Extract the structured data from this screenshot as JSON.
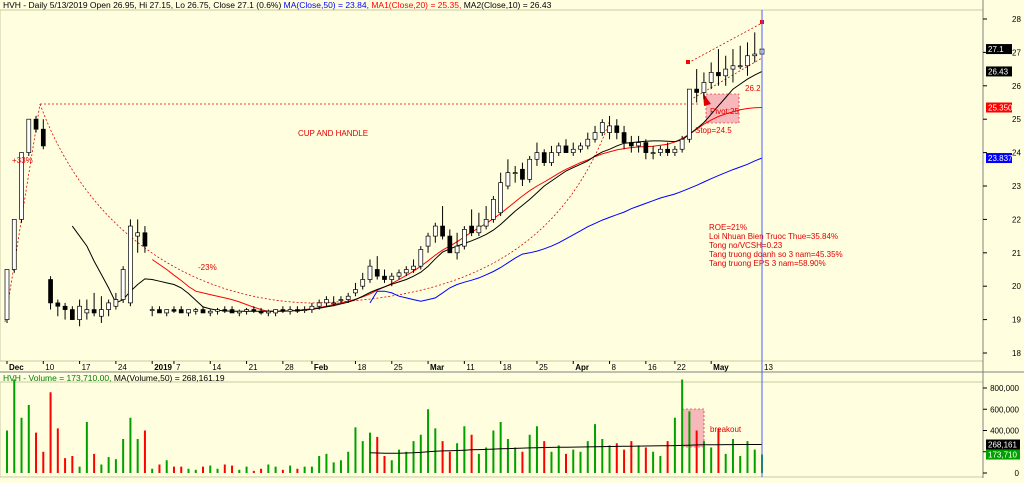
{
  "colors": {
    "bg": "#ffffe0",
    "candle_up": "#ffffff",
    "candle_down": "#000000",
    "ma50": "#0000ff",
    "ma20": "#ff0000",
    "ma10": "#000000",
    "vol_up": "#00a000",
    "vol_down": "#ff0000",
    "annotation": "#e00000",
    "cursor_line": "#4a5cff"
  },
  "header": {
    "price": {
      "lead": "HVH - Daily 5/13/2019 Open 26.95, Hi 27.15, Lo 26.75, Close 27.1 (0.6%) ",
      "ma50": "MA(Close,50) = 23.84, ",
      "ma20": "MA1(Close,20) = 25.35, ",
      "ma10": "MA2(Close,10) = 26.43"
    },
    "volume": {
      "lead": "HVH - Volume = 173,710.00, ",
      "ma": "MA(Volume,50) = 268,161.19"
    }
  },
  "annotations": {
    "cup": "CUP AND HANDLE",
    "pct_up": "+33%",
    "pct_down": "-23%",
    "pivot": "Pivot:25",
    "stop": "Stop=24.5",
    "level": "26.2",
    "breakout": "breakout",
    "fundamentals": [
      "ROE=21%",
      "Loi Nhuan Bien Truoc Thue=35.84%",
      "Tong no/VCSH=0.23",
      "Tang truong doanh so 3 nam=45.35%",
      "Tang truong EPS 3 nam=58.90%"
    ]
  },
  "price_axis": {
    "ticks": [
      "18",
      "19",
      "20",
      "21",
      "22",
      "23",
      "24",
      "25",
      "26",
      "27",
      "28"
    ],
    "tags": [
      {
        "text": "27.1",
        "value": 27.1,
        "bg": "#000000",
        "fg": "#ffffff"
      },
      {
        "text": "26.43",
        "value": 26.43,
        "bg": "#000000",
        "fg": "#ffffff"
      },
      {
        "text": "25.350",
        "value": 25.35,
        "bg": "#ff0000",
        "fg": "#ffffff"
      },
      {
        "text": "23.837",
        "value": 23.837,
        "bg": "#0000ff",
        "fg": "#ffffff"
      }
    ]
  },
  "volume_axis": {
    "ticks": [
      "0",
      "200,000",
      "400,000",
      "600,000",
      "800,000"
    ],
    "tags": [
      {
        "text": "268,161",
        "value": 268161,
        "bg": "#000000",
        "fg": "#ffffff"
      },
      {
        "text": "173,710",
        "value": 173710,
        "bg": "#00a000",
        "fg": "#ffffff"
      }
    ]
  },
  "date_axis": [
    "Dec",
    "10",
    "17",
    "24",
    "2019",
    "7",
    "14",
    "21",
    "28",
    "Feb",
    "18",
    "25",
    "Mar",
    "11",
    "18",
    "25",
    "Apr",
    "8",
    "16",
    "22",
    "May",
    "13"
  ],
  "chart_data": [
    {
      "type": "candlestick",
      "panel": "price",
      "x": [
        "2018-12-03",
        "2018-12-04",
        "2018-12-05",
        "2018-12-06",
        "2018-12-07",
        "2018-12-10",
        "2018-12-11",
        "2018-12-12",
        "2018-12-13",
        "2018-12-14",
        "2018-12-17",
        "2018-12-18",
        "2018-12-19",
        "2018-12-20",
        "2018-12-21",
        "2018-12-24",
        "2018-12-25",
        "2018-12-26",
        "2018-12-27",
        "2018-12-28",
        "2019-01-02",
        "2019-01-03",
        "2019-01-04",
        "2019-01-07",
        "2019-01-08",
        "2019-01-09",
        "2019-01-10",
        "2019-01-11",
        "2019-01-14",
        "2019-01-15",
        "2019-01-16",
        "2019-01-17",
        "2019-01-18",
        "2019-01-21",
        "2019-01-22",
        "2019-01-23",
        "2019-01-24",
        "2019-01-25",
        "2019-01-28",
        "2019-01-29",
        "2019-01-30",
        "2019-01-31",
        "2019-02-01",
        "2019-02-11",
        "2019-02-12",
        "2019-02-13",
        "2019-02-14",
        "2019-02-15",
        "2019-02-18",
        "2019-02-19",
        "2019-02-20",
        "2019-02-21",
        "2019-02-22",
        "2019-02-25",
        "2019-02-26",
        "2019-02-27",
        "2019-02-28",
        "2019-03-01",
        "2019-03-04",
        "2019-03-05",
        "2019-03-06",
        "2019-03-07",
        "2019-03-08",
        "2019-03-11",
        "2019-03-12",
        "2019-03-13",
        "2019-03-14",
        "2019-03-15",
        "2019-03-18",
        "2019-03-19",
        "2019-03-20",
        "2019-03-21",
        "2019-03-22",
        "2019-03-25",
        "2019-03-26",
        "2019-03-27",
        "2019-03-28",
        "2019-03-29",
        "2019-04-01",
        "2019-04-02",
        "2019-04-03",
        "2019-04-04",
        "2019-04-05",
        "2019-04-08",
        "2019-04-09",
        "2019-04-10",
        "2019-04-11",
        "2019-04-12",
        "2019-04-16",
        "2019-04-17",
        "2019-04-18",
        "2019-04-19",
        "2019-04-22",
        "2019-04-23",
        "2019-04-24",
        "2019-04-25",
        "2019-04-26",
        "2019-05-02",
        "2019-05-03",
        "2019-05-06",
        "2019-05-07",
        "2019-05-08",
        "2019-05-09",
        "2019-05-10",
        "2019-05-13"
      ],
      "open": [
        19.0,
        20.5,
        22.0,
        24.0,
        25.0,
        24.7,
        20.2,
        19.5,
        19.4,
        19.3,
        19.0,
        19.2,
        19.3,
        19.1,
        19.3,
        19.4,
        19.6,
        19.5,
        21.5,
        21.6,
        19.3,
        19.3,
        19.2,
        19.3,
        19.3,
        19.2,
        19.25,
        19.3,
        19.2,
        19.25,
        19.3,
        19.3,
        19.2,
        19.25,
        19.3,
        19.25,
        19.2,
        19.2,
        19.3,
        19.25,
        19.3,
        19.3,
        19.3,
        19.4,
        19.5,
        19.5,
        19.6,
        19.6,
        19.8,
        20.0,
        20.2,
        20.5,
        20.3,
        20.2,
        20.3,
        20.4,
        20.5,
        20.6,
        21.2,
        21.5,
        21.8,
        21.5,
        21.0,
        21.2,
        21.8,
        21.6,
        21.8,
        22.0,
        22.2,
        23.0,
        23.4,
        23.5,
        23.2,
        23.8,
        24.0,
        23.7,
        24.0,
        24.2,
        24.0,
        24.1,
        24.2,
        24.4,
        24.6,
        24.6,
        24.8,
        24.6,
        24.3,
        24.2,
        24.3,
        24.0,
        24.0,
        24.1,
        24.0,
        24.1,
        24.4,
        25.9,
        25.8,
        26.1,
        26.4,
        26.3,
        26.5,
        26.6,
        26.6,
        26.9,
        26.95
      ],
      "high": [
        20.5,
        22.0,
        24.0,
        25.0,
        25.1,
        25.0,
        20.3,
        19.6,
        19.5,
        19.4,
        19.6,
        19.6,
        19.8,
        19.7,
        19.6,
        19.8,
        20.6,
        22.0,
        22.0,
        21.8,
        19.4,
        19.4,
        19.3,
        19.4,
        19.4,
        19.3,
        19.35,
        19.4,
        19.3,
        19.35,
        19.4,
        19.4,
        19.3,
        19.35,
        19.4,
        19.35,
        19.3,
        19.3,
        19.4,
        19.4,
        19.4,
        19.4,
        19.5,
        19.6,
        19.7,
        19.7,
        19.7,
        19.8,
        20.1,
        20.4,
        20.8,
        20.9,
        20.5,
        20.4,
        20.5,
        20.6,
        20.8,
        21.2,
        21.6,
        21.9,
        22.4,
        21.7,
        21.6,
        21.8,
        22.3,
        22.2,
        22.4,
        22.7,
        23.4,
        23.8,
        23.6,
        23.7,
        23.9,
        24.3,
        24.1,
        24.2,
        24.3,
        24.4,
        24.3,
        24.3,
        24.6,
        24.8,
        25.0,
        25.1,
        25.0,
        24.8,
        24.5,
        24.5,
        24.4,
        24.2,
        24.2,
        24.3,
        24.2,
        24.5,
        25.9,
        26.5,
        26.4,
        26.7,
        27.1,
        26.9,
        27.1,
        27.2,
        27.3,
        27.6,
        27.15
      ],
      "low": [
        18.9,
        20.4,
        21.9,
        23.9,
        24.6,
        24.1,
        19.3,
        19.1,
        19.0,
        19.0,
        18.8,
        19.0,
        19.1,
        18.9,
        19.1,
        19.3,
        19.5,
        19.4,
        21.0,
        21.0,
        19.1,
        19.2,
        19.1,
        19.2,
        19.2,
        19.1,
        19.15,
        19.2,
        19.1,
        19.15,
        19.2,
        19.2,
        19.1,
        19.15,
        19.2,
        19.15,
        19.1,
        19.1,
        19.2,
        19.15,
        19.2,
        19.2,
        19.2,
        19.3,
        19.4,
        19.4,
        19.5,
        19.5,
        19.7,
        19.9,
        20.1,
        20.2,
        20.1,
        20.0,
        20.2,
        20.3,
        20.4,
        20.5,
        21.0,
        21.3,
        21.4,
        21.0,
        20.8,
        21.1,
        21.5,
        21.5,
        21.7,
        21.9,
        22.1,
        22.9,
        23.1,
        23.0,
        23.1,
        23.6,
        23.6,
        23.6,
        23.9,
        24.0,
        23.9,
        24.0,
        24.1,
        24.3,
        24.5,
        24.4,
        24.4,
        24.1,
        24.0,
        24.0,
        23.8,
        23.8,
        23.9,
        23.9,
        23.9,
        24.0,
        24.3,
        25.5,
        25.6,
        25.9,
        26.0,
        26.0,
        26.1,
        26.5,
        26.3,
        26.7,
        26.75
      ],
      "close": [
        20.5,
        22.0,
        24.0,
        25.0,
        24.7,
        24.2,
        19.5,
        19.4,
        19.3,
        19.0,
        19.4,
        19.3,
        19.2,
        19.3,
        19.5,
        19.6,
        20.5,
        21.8,
        21.6,
        21.2,
        19.3,
        19.2,
        19.3,
        19.25,
        19.2,
        19.3,
        19.3,
        19.2,
        19.25,
        19.3,
        19.25,
        19.2,
        19.25,
        19.3,
        19.25,
        19.2,
        19.25,
        19.3,
        19.25,
        19.3,
        19.25,
        19.3,
        19.4,
        19.5,
        19.6,
        19.5,
        19.6,
        19.7,
        19.9,
        20.2,
        20.6,
        20.3,
        20.2,
        20.3,
        20.4,
        20.5,
        20.6,
        21.1,
        21.5,
        21.8,
        21.5,
        21.0,
        21.2,
        21.7,
        21.6,
        21.8,
        22.0,
        22.6,
        23.1,
        23.4,
        23.4,
        23.2,
        23.8,
        24.0,
        23.7,
        24.0,
        24.2,
        24.0,
        24.1,
        24.2,
        24.4,
        24.6,
        24.9,
        24.8,
        24.6,
        24.3,
        24.2,
        24.3,
        24.0,
        24.0,
        24.1,
        24.0,
        24.1,
        24.4,
        25.9,
        25.8,
        26.1,
        26.4,
        26.3,
        26.5,
        26.6,
        26.6,
        26.9,
        26.95,
        27.1
      ],
      "volume": [
        400000,
        880000,
        520000,
        640000,
        380000,
        200000,
        760000,
        420000,
        140000,
        160000,
        60000,
        480000,
        180000,
        80000,
        150000,
        130000,
        320000,
        520000,
        320000,
        400000,
        40000,
        80000,
        120000,
        60000,
        60000,
        40000,
        30000,
        60000,
        70000,
        40000,
        80000,
        70000,
        30000,
        60000,
        20000,
        40000,
        80000,
        60000,
        30000,
        70000,
        40000,
        60000,
        60000,
        160000,
        180000,
        100000,
        120000,
        200000,
        430000,
        300000,
        380000,
        340000,
        160000,
        120000,
        220000,
        200000,
        300000,
        360000,
        600000,
        420000,
        300000,
        200000,
        280000,
        440000,
        360000,
        180000,
        240000,
        400000,
        480000,
        320000,
        240000,
        200000,
        360000,
        440000,
        300000,
        200000,
        260000,
        180000,
        220000,
        200000,
        300000,
        460000,
        320000,
        260000,
        280000,
        220000,
        300000,
        260000,
        240000,
        200000,
        160000,
        300000,
        520000,
        880000,
        580000,
        400000,
        300000,
        240000,
        420000,
        180000,
        320000,
        160000,
        300000,
        220000,
        173710
      ],
      "ma50": [
        null,
        null,
        null,
        null,
        null,
        null,
        null,
        null,
        null,
        null,
        null,
        null,
        null,
        null,
        null,
        null,
        null,
        null,
        null,
        null,
        null,
        null,
        null,
        null,
        null,
        null,
        null,
        null,
        null,
        null,
        null,
        null,
        null,
        null,
        null,
        null,
        null,
        null,
        null,
        null,
        null,
        null,
        null,
        null,
        null,
        null,
        null,
        null,
        null,
        null,
        19.5,
        19.85,
        19.85,
        19.8,
        19.7,
        19.65,
        19.6,
        19.55,
        19.6,
        19.65,
        19.8,
        19.95,
        20.05,
        20.12,
        20.18,
        20.25,
        20.34,
        20.44,
        20.56,
        20.7,
        20.84,
        20.96,
        21.0,
        21.05,
        21.12,
        21.2,
        21.3,
        21.42,
        21.54,
        21.66,
        21.78,
        21.88,
        21.98,
        22.06,
        22.14,
        22.22,
        22.32,
        22.4,
        22.48,
        22.56,
        22.64,
        22.7,
        22.76,
        22.84,
        22.93,
        23.02,
        23.12,
        23.22,
        23.31,
        23.4,
        23.49,
        23.57,
        23.65,
        23.75,
        23.837
      ],
      "ma20": [
        null,
        null,
        null,
        null,
        null,
        null,
        null,
        null,
        null,
        null,
        null,
        null,
        null,
        null,
        null,
        null,
        null,
        null,
        null,
        null,
        20.8,
        20.65,
        20.5,
        20.33,
        20.17,
        19.99,
        19.85,
        19.8,
        19.75,
        19.7,
        19.65,
        19.6,
        19.53,
        19.45,
        19.37,
        19.3,
        19.25,
        19.25,
        19.26,
        19.26,
        19.28,
        19.3,
        19.33,
        19.36,
        19.4,
        19.45,
        19.5,
        19.55,
        19.61,
        19.68,
        19.77,
        19.88,
        19.98,
        20.08,
        20.2,
        20.32,
        20.45,
        20.6,
        20.76,
        20.93,
        21.08,
        21.2,
        21.33,
        21.48,
        21.62,
        21.75,
        21.88,
        22.02,
        22.18,
        22.35,
        22.53,
        22.7,
        22.86,
        23.0,
        23.12,
        23.25,
        23.38,
        23.5,
        23.6,
        23.7,
        23.78,
        23.88,
        23.96,
        24.02,
        24.08,
        24.12,
        24.15,
        24.17,
        24.18,
        24.19,
        24.22,
        24.25,
        24.32,
        24.42,
        24.55,
        24.7,
        24.85,
        24.98,
        25.08,
        25.16,
        25.22,
        25.28,
        25.32,
        25.34,
        25.35
      ],
      "ma10": [
        null,
        null,
        null,
        null,
        null,
        null,
        null,
        null,
        null,
        21.8,
        21.5,
        21.2,
        20.75,
        20.35,
        19.95,
        19.5,
        19.6,
        19.85,
        20.05,
        20.22,
        20.2,
        20.15,
        20.1,
        20.05,
        19.95,
        19.78,
        19.58,
        19.38,
        19.32,
        19.28,
        19.26,
        19.25,
        19.25,
        19.25,
        19.25,
        19.25,
        19.25,
        19.25,
        19.25,
        19.26,
        19.27,
        19.28,
        19.31,
        19.34,
        19.38,
        19.42,
        19.47,
        19.52,
        19.6,
        19.7,
        19.81,
        19.9,
        19.98,
        20.06,
        20.13,
        20.2,
        20.3,
        20.42,
        20.6,
        20.82,
        21.02,
        21.12,
        21.2,
        21.28,
        21.36,
        21.45,
        21.55,
        21.68,
        21.85,
        22.05,
        22.25,
        22.42,
        22.6,
        22.8,
        23.0,
        23.15,
        23.3,
        23.45,
        23.55,
        23.65,
        23.75,
        23.9,
        24.02,
        24.1,
        24.2,
        24.28,
        24.3,
        24.32,
        24.34,
        24.35,
        24.35,
        24.34,
        24.33,
        24.38,
        24.55,
        24.72,
        24.9,
        25.15,
        25.4,
        25.65,
        25.9,
        26.05,
        26.2,
        26.32,
        26.43
      ],
      "vol_ma50": [
        null,
        null,
        null,
        null,
        null,
        null,
        null,
        null,
        null,
        null,
        null,
        null,
        null,
        null,
        null,
        null,
        null,
        null,
        null,
        null,
        null,
        null,
        null,
        null,
        null,
        null,
        null,
        null,
        null,
        null,
        null,
        null,
        null,
        null,
        null,
        null,
        null,
        null,
        null,
        null,
        null,
        null,
        null,
        null,
        null,
        null,
        null,
        null,
        null,
        null,
        190000,
        188000,
        186000,
        185000,
        186000,
        188000,
        190000,
        194000,
        200000,
        205000,
        208000,
        210000,
        212000,
        215000,
        218000,
        220000,
        222000,
        225000,
        228000,
        230000,
        232000,
        234000,
        236000,
        238000,
        240000,
        241000,
        242000,
        243000,
        244000,
        245000,
        246000,
        247000,
        248000,
        249000,
        250000,
        251000,
        252000,
        253000,
        254000,
        255000,
        256000,
        257000,
        258000,
        260000,
        262000,
        264000,
        265000,
        266000,
        266000,
        267000,
        267500,
        268000,
        268000,
        268161,
        268161
      ]
    }
  ]
}
